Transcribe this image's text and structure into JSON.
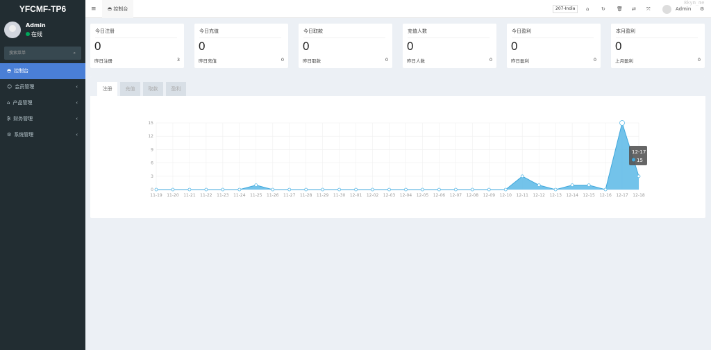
{
  "sidebar": {
    "logo": "YFCMF-TP6",
    "user": "Admin",
    "status": "在线",
    "search_placeholder": "搜索菜单",
    "items": [
      {
        "label": "控制台",
        "icon": "dashboard-icon",
        "active": true
      },
      {
        "label": "会员管理",
        "icon": "user-icon"
      },
      {
        "label": "产品管理",
        "icon": "home-icon"
      },
      {
        "label": "财务管理",
        "icon": "bitcoin-icon"
      },
      {
        "label": "系统管理",
        "icon": "gears-icon"
      }
    ]
  },
  "topbar": {
    "tab": "控制台",
    "server": "207-India",
    "user": "Admin"
  },
  "cards": [
    {
      "title": "今日注册",
      "value": "0",
      "sub": "昨日注册",
      "sub_value": "3"
    },
    {
      "title": "今日充值",
      "value": "0",
      "sub": "昨日充值",
      "sub_value": "0"
    },
    {
      "title": "今日取款",
      "value": "0",
      "sub": "昨日取款",
      "sub_value": "0"
    },
    {
      "title": "充值人数",
      "value": "0",
      "sub": "昨日人数",
      "sub_value": "0"
    },
    {
      "title": "今日盈利",
      "value": "0",
      "sub": "昨日盈利",
      "sub_value": "0"
    },
    {
      "title": "本月盈利",
      "value": "0",
      "sub": "上月盈利",
      "sub_value": "0"
    }
  ],
  "tabs": [
    "注册",
    "充值",
    "取款",
    "盈利"
  ],
  "chart_data": {
    "type": "area",
    "color": "#5bb9e6",
    "ylim": [
      0,
      15
    ],
    "yticks": [
      0,
      3,
      6,
      9,
      12,
      15
    ],
    "grid": true,
    "categories": [
      "11-19",
      "11-20",
      "11-21",
      "11-22",
      "11-23",
      "11-24",
      "11-25",
      "11-26",
      "11-27",
      "11-28",
      "11-29",
      "11-30",
      "12-01",
      "12-02",
      "12-03",
      "12-04",
      "12-05",
      "12-06",
      "12-07",
      "12-08",
      "12-09",
      "12-10",
      "12-11",
      "12-12",
      "12-13",
      "12-14",
      "12-15",
      "12-16",
      "12-17",
      "12-18"
    ],
    "values": [
      0,
      0,
      0,
      0,
      0,
      0,
      1,
      0,
      0,
      0,
      0,
      0,
      0,
      0,
      0,
      0,
      0,
      0,
      0,
      0,
      0,
      0,
      3,
      1,
      0,
      1,
      1,
      0,
      15,
      3
    ],
    "tooltip": {
      "label": "12-17",
      "value": "15"
    }
  },
  "watermark": "8kym_me"
}
